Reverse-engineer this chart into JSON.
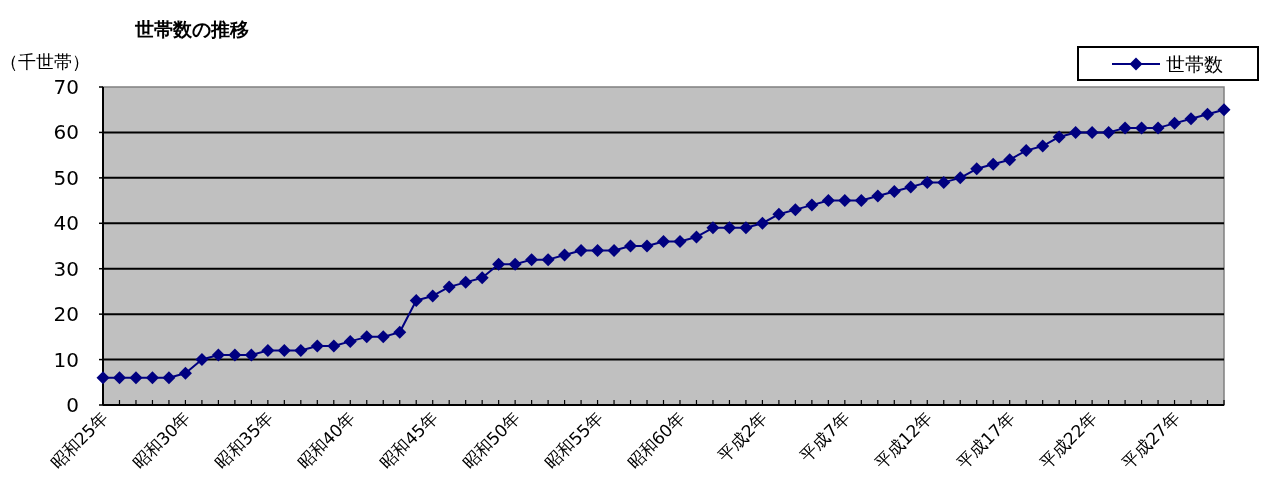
{
  "chart_data": {
    "type": "line",
    "title": "世帯数の推移",
    "ylabel": "（千世帯）",
    "categories": [
      "昭和25年",
      null,
      null,
      null,
      null,
      "昭和30年",
      null,
      null,
      null,
      null,
      "昭和35年",
      null,
      null,
      null,
      null,
      "昭和40年",
      null,
      null,
      null,
      null,
      "昭和45年",
      null,
      null,
      null,
      null,
      "昭和50年",
      null,
      null,
      null,
      null,
      "昭和55年",
      null,
      null,
      null,
      null,
      "昭和60年",
      null,
      null,
      null,
      null,
      "平成2年",
      null,
      null,
      null,
      null,
      "平成7年",
      null,
      null,
      null,
      null,
      "平成12年",
      null,
      null,
      null,
      null,
      "平成17年",
      null,
      null,
      null,
      null,
      "平成22年",
      null,
      null,
      null,
      null,
      "平成27年",
      null,
      null,
      null
    ],
    "series": [
      {
        "name": "世帯数",
        "color": "#000080",
        "values": [
          6,
          6,
          6,
          6,
          6,
          7,
          10,
          11,
          11,
          11,
          12,
          12,
          12,
          13,
          13,
          14,
          15,
          15,
          16,
          23,
          24,
          26,
          27,
          28,
          31,
          31,
          32,
          32,
          33,
          34,
          34,
          34,
          35,
          35,
          36,
          36,
          37,
          39,
          39,
          39,
          40,
          42,
          43,
          44,
          45,
          45,
          45,
          46,
          47,
          48,
          49,
          49,
          50,
          52,
          53,
          54,
          56,
          57,
          59,
          60,
          60,
          60,
          61,
          61,
          61,
          62,
          63,
          64,
          65
        ]
      }
    ],
    "ylim": [
      0,
      70
    ],
    "yticks": [
      0,
      10,
      20,
      30,
      40,
      50,
      60,
      70
    ],
    "grid": "y",
    "legend": "top right",
    "marker": "diamond",
    "line_style": "solid"
  }
}
